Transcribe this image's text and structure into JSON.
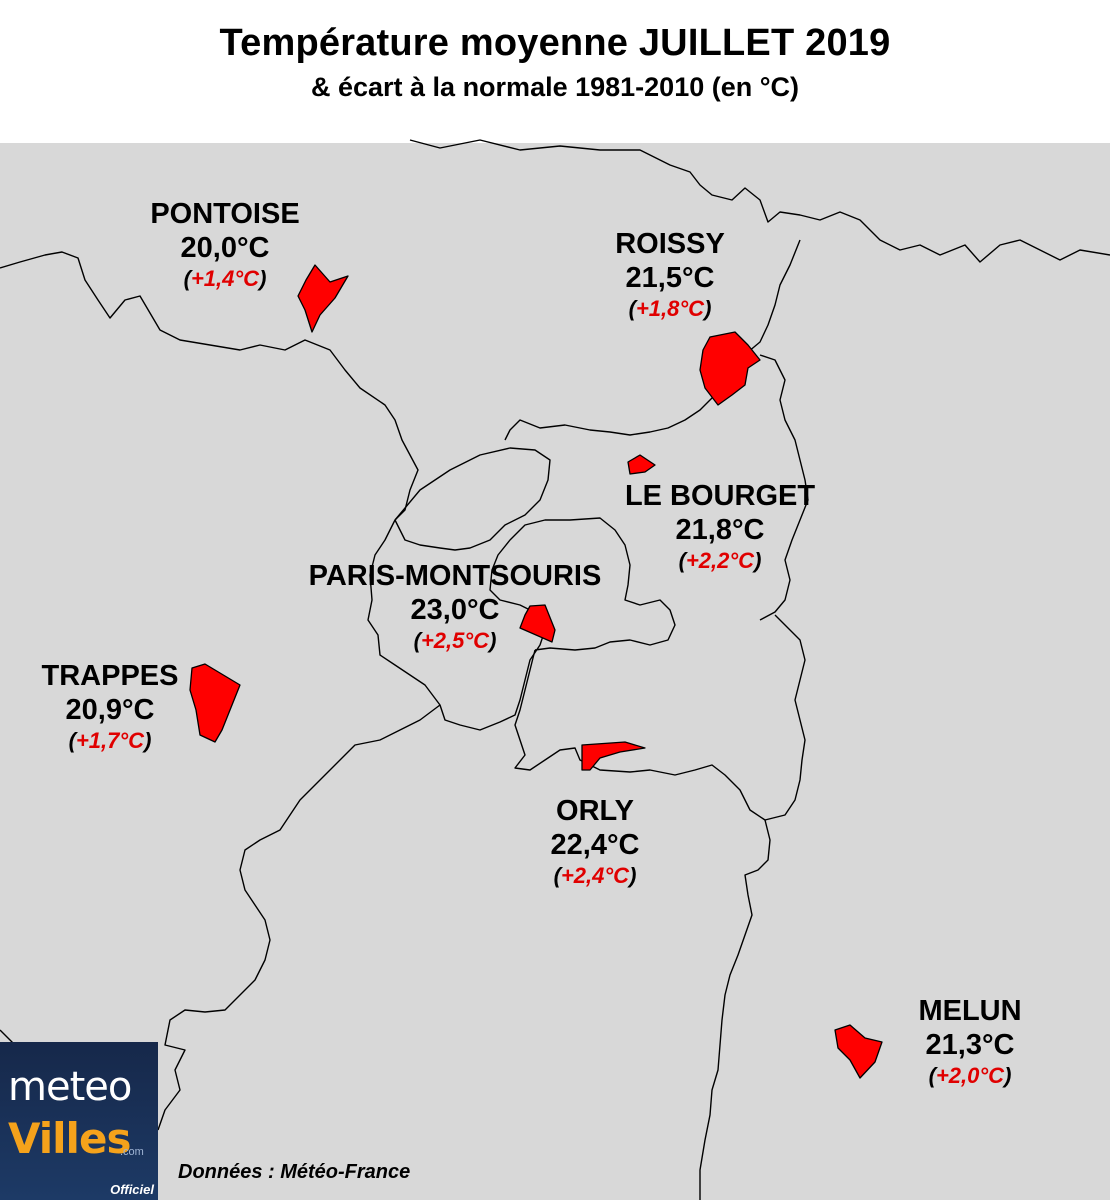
{
  "title": "Température moyenne JUILLET 2019",
  "subtitle": "& écart à la normale 1981-2010 (en °C)",
  "stations": [
    {
      "name": "PONTOISE",
      "temp": "20,0°C",
      "dev": "+1,4°C"
    },
    {
      "name": "ROISSY",
      "temp": "21,5°C",
      "dev": "+1,8°C"
    },
    {
      "name": "LE BOURGET",
      "temp": "21,8°C",
      "dev": "+2,2°C"
    },
    {
      "name": "PARIS-MONTSOURIS",
      "temp": "23,0°C",
      "dev": "+2,5°C"
    },
    {
      "name": "TRAPPES",
      "temp": "20,9°C",
      "dev": "+1,7°C"
    },
    {
      "name": "ORLY",
      "temp": "22,4°C",
      "dev": "+2,4°C"
    },
    {
      "name": "MELUN",
      "temp": "21,3°C",
      "dev": "+2,0°C"
    }
  ],
  "source": "Données : Météo-France",
  "logo": {
    "line1": "meteo",
    "line2": "Villes",
    "suffix": ".com",
    "tag": "Officiel"
  },
  "colors": {
    "land": "#d8d8d8",
    "station_fill": "#ff0000",
    "deviation": "#e00000",
    "logo_bg": "#1d3a66",
    "logo_accent": "#f5a21b"
  }
}
